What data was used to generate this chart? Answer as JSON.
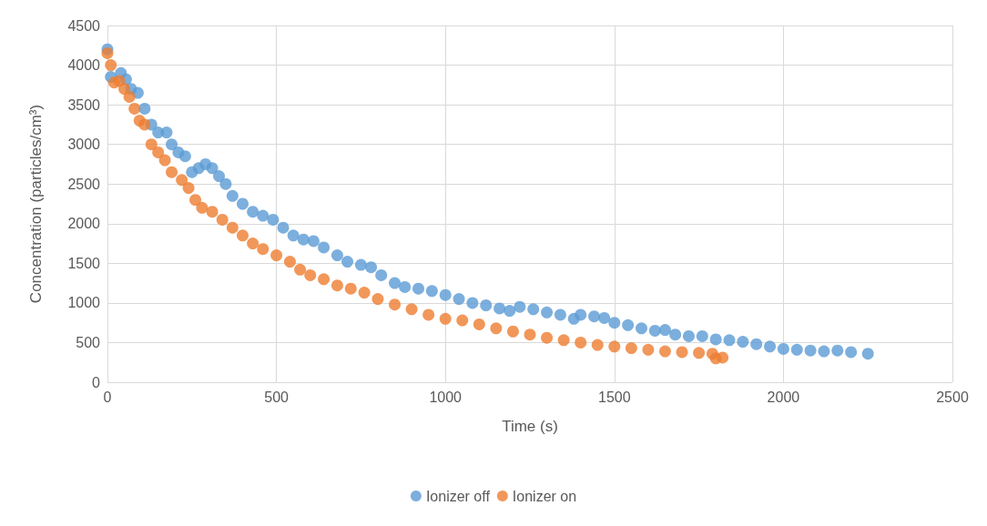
{
  "chart_data": {
    "type": "scatter",
    "xlabel": "Time (s)",
    "ylabel": "Concentration (particles/cm³)",
    "xlim": [
      0,
      2500
    ],
    "xticks": [
      0,
      500,
      1000,
      1500,
      2000,
      2500
    ],
    "ylim": [
      0,
      4500
    ],
    "yticks": [
      0,
      500,
      1000,
      1500,
      2000,
      2500,
      3000,
      3500,
      4000,
      4500
    ],
    "grid": true,
    "legend": "bottom",
    "marker": "circle",
    "series": [
      {
        "name": "Ionizer off",
        "color": "#5b9bd5",
        "x": [
          0,
          10,
          25,
          40,
          55,
          70,
          90,
          110,
          130,
          150,
          175,
          190,
          210,
          230,
          250,
          270,
          290,
          310,
          330,
          350,
          370,
          400,
          430,
          460,
          490,
          520,
          550,
          580,
          610,
          640,
          680,
          710,
          750,
          780,
          810,
          850,
          880,
          920,
          960,
          1000,
          1040,
          1080,
          1120,
          1160,
          1190,
          1220,
          1260,
          1300,
          1340,
          1380,
          1400,
          1440,
          1470,
          1500,
          1540,
          1580,
          1620,
          1650,
          1680,
          1720,
          1760,
          1800,
          1840,
          1880,
          1920,
          1960,
          2000,
          2040,
          2080,
          2120,
          2160,
          2200,
          2250
        ],
        "values": [
          4200,
          3850,
          null,
          3900,
          3820,
          3700,
          3650,
          3450,
          3250,
          3150,
          3150,
          3000,
          2900,
          2850,
          2650,
          2700,
          2750,
          2700,
          2600,
          2500,
          2350,
          2250,
          2150,
          2100,
          2050,
          1950,
          1850,
          1800,
          1780,
          1700,
          1600,
          1520,
          1480,
          1450,
          1350,
          1250,
          1200,
          1180,
          1150,
          1100,
          1050,
          1000,
          970,
          930,
          900,
          950,
          920,
          880,
          850,
          800,
          850,
          830,
          810,
          750,
          720,
          680,
          650,
          660,
          600,
          580,
          580,
          540,
          530,
          510,
          480,
          450,
          420,
          410,
          400,
          390,
          400,
          380,
          360
        ]
      },
      {
        "name": "Ionizer on",
        "color": "#ed7d31",
        "x": [
          0,
          10,
          20,
          35,
          50,
          65,
          80,
          95,
          110,
          130,
          150,
          170,
          190,
          220,
          240,
          260,
          280,
          310,
          340,
          370,
          400,
          430,
          460,
          500,
          540,
          570,
          600,
          640,
          680,
          720,
          760,
          800,
          850,
          900,
          950,
          1000,
          1050,
          1100,
          1150,
          1200,
          1250,
          1300,
          1350,
          1400,
          1450,
          1500,
          1550,
          1600,
          1650,
          1700,
          1750,
          1790,
          1800,
          1820
        ],
        "values": [
          4150,
          4000,
          3780,
          3800,
          3700,
          3600,
          3450,
          3300,
          3250,
          3000,
          2900,
          2800,
          2650,
          2550,
          2450,
          2300,
          2200,
          2150,
          2050,
          1950,
          1850,
          1750,
          1680,
          1600,
          1520,
          1420,
          1350,
          1300,
          1220,
          1180,
          1130,
          1050,
          980,
          920,
          850,
          800,
          780,
          730,
          680,
          640,
          600,
          560,
          530,
          500,
          470,
          450,
          430,
          410,
          390,
          380,
          370,
          360,
          300,
          310
        ]
      }
    ]
  }
}
